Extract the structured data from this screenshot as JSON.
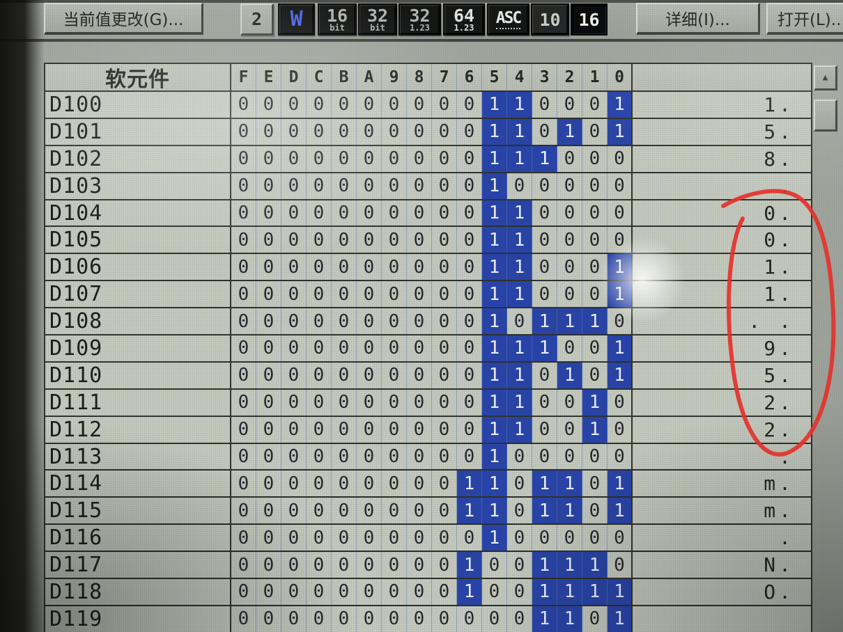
{
  "toolbar": {
    "change_value_label": "当前值更改(G)...",
    "detail_label": "详细(I)...",
    "open_label": "打开(L)...",
    "format_buttons": [
      {
        "id": "bin",
        "label": "2",
        "sub": "",
        "style": "raised"
      },
      {
        "id": "word",
        "label": "W",
        "sub": "",
        "style": "w"
      },
      {
        "id": "16bit",
        "label": "16",
        "sub": "bit",
        "style": ""
      },
      {
        "id": "32bit",
        "label": "32",
        "sub": "bit",
        "style": ""
      },
      {
        "id": "32fp",
        "label": "32",
        "sub": "1.23",
        "style": ""
      },
      {
        "id": "64fp",
        "label": "64",
        "sub": "1.23",
        "style": "bright"
      },
      {
        "id": "asc",
        "label": "ASC",
        "sub": "",
        "style": "asc"
      },
      {
        "id": "dec",
        "label": "10",
        "sub": "",
        "style": "dim"
      },
      {
        "id": "hex",
        "label": "16",
        "sub": "",
        "style": "pressed"
      }
    ]
  },
  "table": {
    "device_header": "软元件",
    "bit_headers": [
      "F",
      "E",
      "D",
      "C",
      "B",
      "A",
      "9",
      "8",
      "7",
      "6",
      "5",
      "4",
      "3",
      "2",
      "1",
      "0"
    ],
    "rows": [
      {
        "device": "D100",
        "bits": [
          0,
          0,
          0,
          0,
          0,
          0,
          0,
          0,
          0,
          0,
          1,
          1,
          0,
          0,
          0,
          1
        ],
        "value": "1."
      },
      {
        "device": "D101",
        "bits": [
          0,
          0,
          0,
          0,
          0,
          0,
          0,
          0,
          0,
          0,
          1,
          1,
          0,
          1,
          0,
          1
        ],
        "value": "5."
      },
      {
        "device": "D102",
        "bits": [
          0,
          0,
          0,
          0,
          0,
          0,
          0,
          0,
          0,
          0,
          1,
          1,
          1,
          0,
          0,
          0
        ],
        "value": "8."
      },
      {
        "device": "D103",
        "bits": [
          0,
          0,
          0,
          0,
          0,
          0,
          0,
          0,
          0,
          0,
          1,
          0,
          0,
          0,
          0,
          0
        ],
        "value": " ."
      },
      {
        "device": "D104",
        "bits": [
          0,
          0,
          0,
          0,
          0,
          0,
          0,
          0,
          0,
          0,
          1,
          1,
          0,
          0,
          0,
          0
        ],
        "value": "0."
      },
      {
        "device": "D105",
        "bits": [
          0,
          0,
          0,
          0,
          0,
          0,
          0,
          0,
          0,
          0,
          1,
          1,
          0,
          0,
          0,
          0
        ],
        "value": "0."
      },
      {
        "device": "D106",
        "bits": [
          0,
          0,
          0,
          0,
          0,
          0,
          0,
          0,
          0,
          0,
          1,
          1,
          0,
          0,
          0,
          1
        ],
        "value": "1."
      },
      {
        "device": "D107",
        "bits": [
          0,
          0,
          0,
          0,
          0,
          0,
          0,
          0,
          0,
          0,
          1,
          1,
          0,
          0,
          0,
          1
        ],
        "value": "1."
      },
      {
        "device": "D108",
        "bits": [
          0,
          0,
          0,
          0,
          0,
          0,
          0,
          0,
          0,
          0,
          1,
          0,
          1,
          1,
          1,
          0
        ],
        "value": ". ."
      },
      {
        "device": "D109",
        "bits": [
          0,
          0,
          0,
          0,
          0,
          0,
          0,
          0,
          0,
          0,
          1,
          1,
          1,
          0,
          0,
          1
        ],
        "value": "9."
      },
      {
        "device": "D110",
        "bits": [
          0,
          0,
          0,
          0,
          0,
          0,
          0,
          0,
          0,
          0,
          1,
          1,
          0,
          1,
          0,
          1
        ],
        "value": "5."
      },
      {
        "device": "D111",
        "bits": [
          0,
          0,
          0,
          0,
          0,
          0,
          0,
          0,
          0,
          0,
          1,
          1,
          0,
          0,
          1,
          0
        ],
        "value": "2."
      },
      {
        "device": "D112",
        "bits": [
          0,
          0,
          0,
          0,
          0,
          0,
          0,
          0,
          0,
          0,
          1,
          1,
          0,
          0,
          1,
          0
        ],
        "value": "2."
      },
      {
        "device": "D113",
        "bits": [
          0,
          0,
          0,
          0,
          0,
          0,
          0,
          0,
          0,
          0,
          1,
          0,
          0,
          0,
          0,
          0
        ],
        "value": " ."
      },
      {
        "device": "D114",
        "bits": [
          0,
          0,
          0,
          0,
          0,
          0,
          0,
          0,
          0,
          1,
          1,
          0,
          1,
          1,
          0,
          1
        ],
        "value": "m."
      },
      {
        "device": "D115",
        "bits": [
          0,
          0,
          0,
          0,
          0,
          0,
          0,
          0,
          0,
          1,
          1,
          0,
          1,
          1,
          0,
          1
        ],
        "value": "m."
      },
      {
        "device": "D116",
        "bits": [
          0,
          0,
          0,
          0,
          0,
          0,
          0,
          0,
          0,
          0,
          1,
          0,
          0,
          0,
          0,
          0
        ],
        "value": " ."
      },
      {
        "device": "D117",
        "bits": [
          0,
          0,
          0,
          0,
          0,
          0,
          0,
          0,
          0,
          1,
          0,
          0,
          1,
          1,
          1,
          0
        ],
        "value": "N."
      },
      {
        "device": "D118",
        "bits": [
          0,
          0,
          0,
          0,
          0,
          0,
          0,
          0,
          0,
          1,
          0,
          0,
          1,
          1,
          1,
          1
        ],
        "value": "O."
      },
      {
        "device": "D119",
        "bits": [
          0,
          0,
          0,
          0,
          0,
          0,
          0,
          0,
          0,
          0,
          0,
          0,
          1,
          1,
          0,
          1
        ],
        "value": ""
      }
    ]
  },
  "scrollbar": {
    "up_glyph": "▲"
  },
  "annotation": {
    "type": "hand-drawn-ellipse",
    "region": "value column rows D104–D112"
  },
  "colors": {
    "bit_on_bg": "#2742a8",
    "annotation_red": "#e4322b",
    "word_button_blue": "#4a66e6"
  }
}
